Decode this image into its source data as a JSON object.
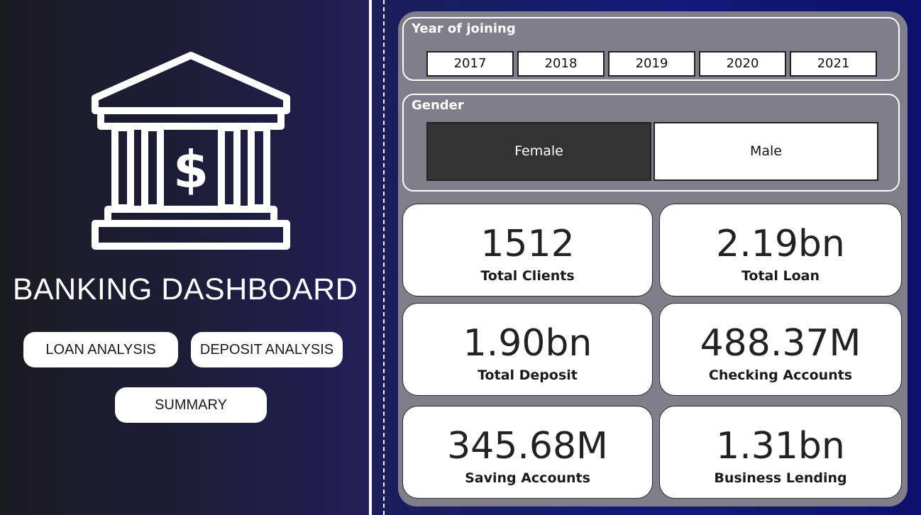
{
  "app": {
    "title": "BANKING DASHBOARD"
  },
  "nav": {
    "loan_analysis": "LOAN ANALYSIS",
    "deposit_analysis": "DEPOSIT ANALYSIS",
    "summary": "SUMMARY"
  },
  "filters": {
    "year": {
      "title": "Year of joining",
      "options": [
        "2017",
        "2018",
        "2019",
        "2020",
        "2021"
      ]
    },
    "gender": {
      "title": "Gender",
      "options": [
        "Female",
        "Male"
      ],
      "selected": "Female"
    }
  },
  "kpis": [
    {
      "value": "1512",
      "label": "Total Clients"
    },
    {
      "value": "2.19bn",
      "label": "Total Loan"
    },
    {
      "value": "1.90bn",
      "label": "Total Deposit"
    },
    {
      "value": "488.37M",
      "label": "Checking Accounts"
    },
    {
      "value": "345.68M",
      "label": "Saving Accounts"
    },
    {
      "value": "1.31bn",
      "label": "Business Lending"
    }
  ],
  "colors": {
    "panel": "#7f7e8a",
    "selected_slicer": "#333333",
    "card": "#ffffff",
    "text_light": "#ffffff"
  },
  "icons": {
    "logo": "bank-dollar-icon"
  }
}
